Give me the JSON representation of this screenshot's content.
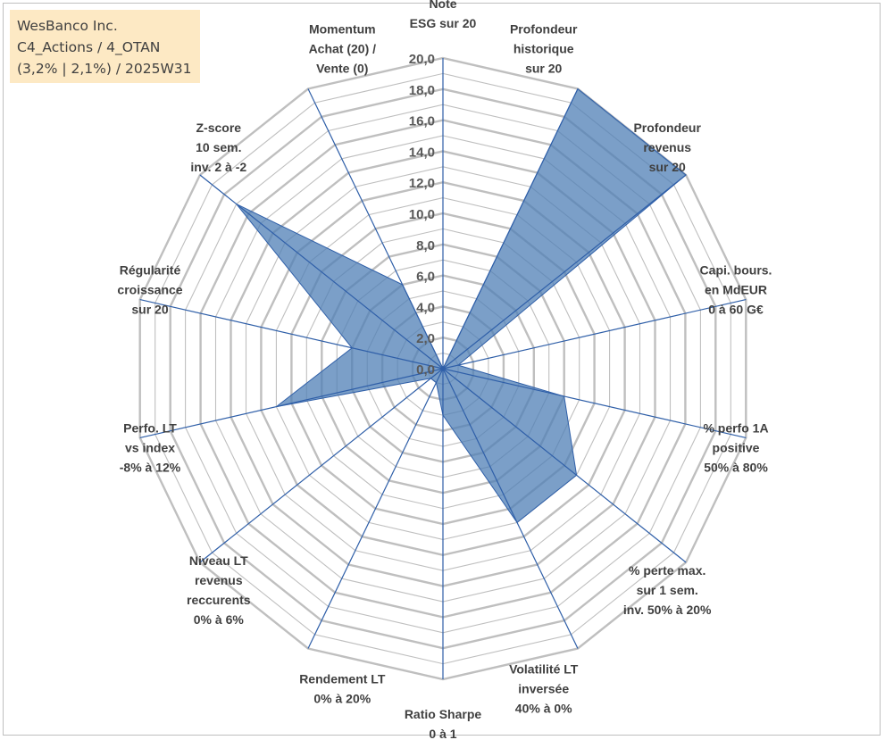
{
  "title_box": {
    "line1": "WesBanco Inc.",
    "line2": "C4_Actions / 4_OTAN",
    "line3": "(3,2% | 2,1%) / 2025W31"
  },
  "chart_data": {
    "type": "radar",
    "rmax": 20,
    "ticks": [
      "0,0",
      "2,0",
      "4,0",
      "6,0",
      "8,0",
      "10,0",
      "12,0",
      "14,0",
      "16,0",
      "18,0",
      "20,0"
    ],
    "tick_values": [
      0,
      2,
      4,
      6,
      8,
      10,
      12,
      14,
      16,
      18,
      20
    ],
    "grid_step": 1,
    "grid": true,
    "legend": "none",
    "colors": {
      "fill": "#4f7fb5",
      "fill_opacity": 0.75,
      "axis": "#2f5fa8",
      "grid": "#bfbfbf"
    },
    "axes": [
      {
        "label": [
          "Note",
          "ESG sur 20"
        ],
        "value": 0
      },
      {
        "label": [
          "Profondeur",
          "historique",
          "sur 20"
        ],
        "value": 20
      },
      {
        "label": [
          "Profondeur",
          "revenus",
          "sur 20"
        ],
        "value": 20
      },
      {
        "label": [
          "Capi. bours.",
          "en MdEUR",
          "0 à 60 G€"
        ],
        "value": 1
      },
      {
        "label": [
          "% perfo 1A",
          "positive",
          "50% à 80%"
        ],
        "value": 8
      },
      {
        "label": [
          "% perte max.",
          "sur 1 sem.",
          "inv. 50% à 20%"
        ],
        "value": 11
      },
      {
        "label": [
          "Volatilité LT",
          "inversée",
          "40% à 0%"
        ],
        "value": 11
      },
      {
        "label": [
          "Ratio Sharpe",
          "0 à 1"
        ],
        "value": 3
      },
      {
        "label": [
          "Rendement LT",
          "0% à 20%"
        ],
        "value": 1
      },
      {
        "label": [
          "Niveau LT",
          "revenus",
          "reccurents",
          "0% à 6%"
        ],
        "value": 1
      },
      {
        "label": [
          "Perfo. LT",
          "vs index",
          "-8% à 12%"
        ],
        "value": 11
      },
      {
        "label": [
          "Régularité",
          "croissance",
          "sur 20"
        ],
        "value": 6
      },
      {
        "label": [
          "Z-score",
          "10 sem.",
          "inv. 2 à -2"
        ],
        "value": 17
      },
      {
        "label": [
          "Momentum",
          "Achat (20) /",
          "Vente (0)"
        ],
        "value": 6
      }
    ]
  }
}
